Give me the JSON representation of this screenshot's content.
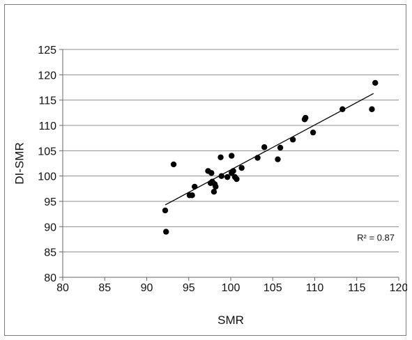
{
  "chart_data": {
    "type": "scatter",
    "title": "",
    "xlabel": "SMR",
    "ylabel": "DI-SMR",
    "xlim": [
      80,
      120
    ],
    "ylim": [
      80,
      125
    ],
    "xticks": [
      80,
      85,
      90,
      95,
      100,
      105,
      110,
      115,
      120
    ],
    "yticks": [
      80,
      85,
      90,
      95,
      100,
      105,
      110,
      115,
      120,
      125
    ],
    "grid": "horizontal",
    "legend": "none",
    "point_color": "#000000",
    "line_color": "#000000",
    "points": [
      {
        "x": 92.2,
        "y": 93.2
      },
      {
        "x": 92.3,
        "y": 89.0
      },
      {
        "x": 93.2,
        "y": 102.3
      },
      {
        "x": 95.1,
        "y": 96.2
      },
      {
        "x": 95.4,
        "y": 96.2
      },
      {
        "x": 95.7,
        "y": 97.9
      },
      {
        "x": 97.3,
        "y": 101.0
      },
      {
        "x": 97.6,
        "y": 98.6
      },
      {
        "x": 97.7,
        "y": 100.6
      },
      {
        "x": 97.8,
        "y": 98.9
      },
      {
        "x": 98.0,
        "y": 96.9
      },
      {
        "x": 98.1,
        "y": 98.4
      },
      {
        "x": 98.2,
        "y": 97.9
      },
      {
        "x": 98.8,
        "y": 103.7
      },
      {
        "x": 98.9,
        "y": 100.0
      },
      {
        "x": 99.6,
        "y": 99.8
      },
      {
        "x": 100.1,
        "y": 100.6
      },
      {
        "x": 100.1,
        "y": 104.0
      },
      {
        "x": 100.3,
        "y": 101.0
      },
      {
        "x": 100.5,
        "y": 99.8
      },
      {
        "x": 100.7,
        "y": 99.4
      },
      {
        "x": 101.3,
        "y": 101.6
      },
      {
        "x": 103.2,
        "y": 103.6
      },
      {
        "x": 104.0,
        "y": 105.7
      },
      {
        "x": 105.6,
        "y": 103.3
      },
      {
        "x": 105.9,
        "y": 105.6
      },
      {
        "x": 107.4,
        "y": 107.2
      },
      {
        "x": 108.8,
        "y": 111.2
      },
      {
        "x": 108.9,
        "y": 111.5
      },
      {
        "x": 109.8,
        "y": 108.6
      },
      {
        "x": 113.3,
        "y": 113.2
      },
      {
        "x": 116.8,
        "y": 113.2
      },
      {
        "x": 117.2,
        "y": 118.4
      }
    ],
    "trendline": {
      "x": [
        92.2,
        117.0
      ],
      "y": [
        94.3,
        116.3
      ]
    },
    "annotation": "R² = 0.87"
  }
}
